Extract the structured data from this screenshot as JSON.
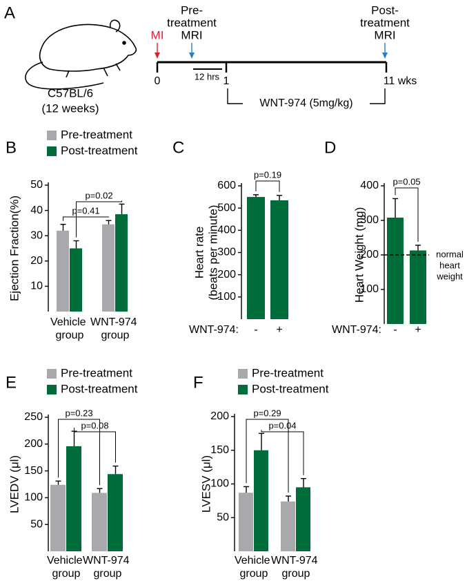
{
  "timeline": {
    "panel": "A",
    "strain": "C57BL/6",
    "age": "(12 weeks)",
    "events": [
      {
        "lines": [
          "MI"
        ],
        "color": "#e0202e"
      },
      {
        "lines": [
          "Pre-",
          "treatment",
          "MRI"
        ],
        "color": "#2a7fc0"
      },
      {
        "lines": [
          "Post-",
          "treatment",
          "MRI"
        ],
        "color": "#2a7fc0"
      }
    ],
    "ticks": [
      "0",
      "1",
      "11 wks"
    ],
    "interval": "12 hrs",
    "treatment": "WNT-974 (5mg/kg)"
  },
  "chart_data": [
    {
      "type": "bar",
      "panel": "B",
      "ylabel": "Ejection Fraction(%)",
      "categories": [
        "Vehicle group",
        "WNT-974 group"
      ],
      "series": [
        {
          "name": "Pre-treatment",
          "color": "#a7a9ac",
          "values": [
            32,
            34.5
          ],
          "errors": [
            2.5,
            1.5
          ]
        },
        {
          "name": "Post-treatment",
          "color": "#006c3a",
          "values": [
            25,
            38.5
          ],
          "errors": [
            3,
            4
          ]
        }
      ],
      "ylim": [
        0,
        50
      ],
      "yticks": [
        10,
        20,
        30,
        40,
        50
      ],
      "annotations": [
        "p=0.41",
        "p=0.02"
      ]
    },
    {
      "type": "bar",
      "panel": "C",
      "ylabel": [
        "Heart rate",
        "(beats per minute)"
      ],
      "xlabel": "WNT-974:",
      "categories": [
        "-",
        "+"
      ],
      "values": [
        550,
        535
      ],
      "errors": [
        10,
        22
      ],
      "color": "#006c3a",
      "ylim": [
        0,
        600
      ],
      "yticks": [
        100,
        200,
        300,
        400,
        500,
        600
      ],
      "annotations": [
        "p=0.19"
      ]
    },
    {
      "type": "bar",
      "panel": "D",
      "ylabel": "Heart Weight (mg)",
      "xlabel": "WNT-974:",
      "categories": [
        "-",
        "+"
      ],
      "values": [
        308,
        213
      ],
      "errors": [
        55,
        15
      ],
      "color": "#006c3a",
      "ylim": [
        0,
        400
      ],
      "yticks": [
        100,
        200,
        300,
        400
      ],
      "annotations": [
        "p=0.05"
      ],
      "reference": {
        "value": 200,
        "lines": [
          "normal",
          "heart",
          "weight"
        ]
      }
    },
    {
      "type": "bar",
      "panel": "E",
      "ylabel": "LVEDV (μl)",
      "categories": [
        "Vehicle group",
        "WNT-974 group"
      ],
      "series": [
        {
          "name": "Pre-treatment",
          "color": "#a7a9ac",
          "values": [
            124,
            109
          ],
          "errors": [
            7,
            8
          ]
        },
        {
          "name": "Post-treatment",
          "color": "#006c3a",
          "values": [
            196,
            144
          ],
          "errors": [
            28,
            15
          ]
        }
      ],
      "ylim": [
        0,
        250
      ],
      "yticks": [
        50,
        100,
        150,
        200,
        250
      ],
      "annotations": [
        "p=0.23",
        "p=0.08"
      ]
    },
    {
      "type": "bar",
      "panel": "F",
      "ylabel": "LVESV (μl)",
      "categories": [
        "Vehicle group",
        "WNT-974 group"
      ],
      "series": [
        {
          "name": "Pre-treatment",
          "color": "#a7a9ac",
          "values": [
            87,
            74
          ],
          "errors": [
            9,
            8
          ]
        },
        {
          "name": "Post-treatment",
          "color": "#006c3a",
          "values": [
            150,
            95
          ],
          "errors": [
            25,
            13
          ]
        }
      ],
      "ylim": [
        0,
        200
      ],
      "yticks": [
        50,
        100,
        150,
        200
      ],
      "annotations": [
        "p=0.29",
        "p=0.04"
      ]
    }
  ]
}
